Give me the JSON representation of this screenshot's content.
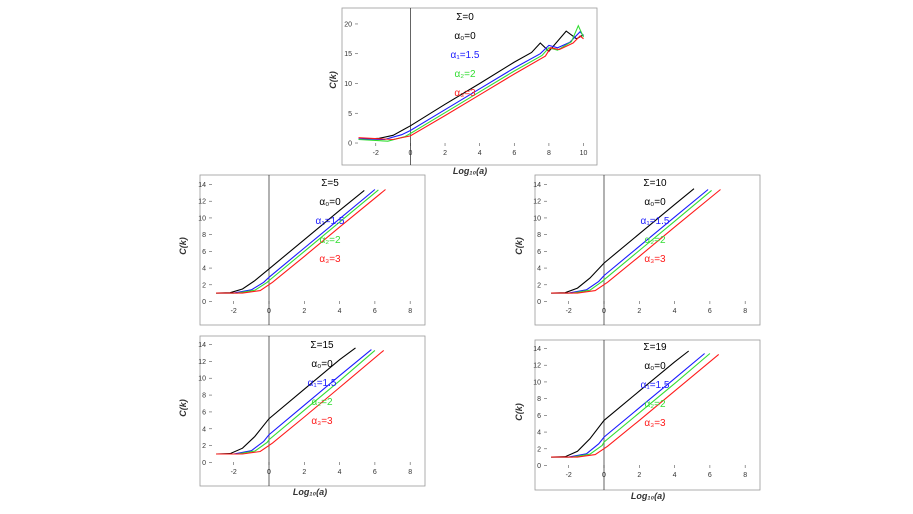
{
  "colors": {
    "alpha0": "#000000",
    "alpha1": "#1a1aff",
    "alpha2": "#33dd33",
    "alpha3": "#ff1a1a",
    "frame": "#999999",
    "vline": "#222222"
  },
  "labels": {
    "alpha0": "α₀=0",
    "alpha1": "α₁=1.5",
    "alpha2": "α₂=2",
    "alpha3": "α₃=3"
  },
  "chart_data": [
    {
      "type": "line",
      "title": "Ʃ=0",
      "xlabel": "Log₁₀(a)",
      "ylabel": "C(k)",
      "xlim": [
        -3.2,
        10.2
      ],
      "ylim": [
        -0.5,
        21
      ],
      "xticks": [
        -2,
        0,
        2,
        4,
        6,
        8,
        10
      ],
      "yticks": [
        0,
        5,
        10,
        15,
        20
      ],
      "series": [
        {
          "name": "α₀=0",
          "x": [
            -3.0,
            -1.8,
            -1.0,
            0,
            2,
            4,
            6,
            7.0,
            7.5,
            8.0,
            9.0,
            9.6,
            10.0
          ],
          "y": [
            0.6,
            0.8,
            1.3,
            2.9,
            6.5,
            10.0,
            13.6,
            15.2,
            16.8,
            15.4,
            18.8,
            17.5,
            18.2
          ]
        },
        {
          "name": "α₁=1.5",
          "x": [
            -3.0,
            -1.5,
            -0.5,
            0,
            2,
            4,
            6,
            7.5,
            8.0,
            8.5,
            9.2,
            9.8,
            10.0
          ],
          "y": [
            0.7,
            0.6,
            1.4,
            2.1,
            5.6,
            9.1,
            12.6,
            15.0,
            16.4,
            16.0,
            16.9,
            18.7,
            18.0
          ]
        },
        {
          "name": "α₂=2",
          "x": [
            -3.0,
            -1.3,
            -0.3,
            0,
            2,
            4,
            6,
            7.6,
            8.0,
            8.5,
            9.3,
            9.7,
            10.0
          ],
          "y": [
            0.6,
            0.3,
            1.1,
            1.6,
            5.1,
            8.6,
            12.1,
            14.7,
            16.0,
            15.6,
            17.0,
            19.7,
            17.8
          ]
        },
        {
          "name": "α₃=3",
          "x": [
            -3.0,
            -1.0,
            0,
            2,
            4,
            6,
            7.8,
            8.1,
            8.6,
            9.4,
            9.8,
            10.0
          ],
          "y": [
            0.9,
            0.6,
            1.2,
            4.6,
            8.1,
            11.6,
            14.6,
            16.0,
            15.7,
            16.8,
            18.0,
            17.5
          ]
        }
      ]
    },
    {
      "type": "line",
      "title": "Ʃ=5",
      "xlabel": "",
      "ylabel": "C(k)",
      "xlim": [
        -3.4,
        8.5
      ],
      "ylim": [
        -0.3,
        14.3
      ],
      "xticks": [
        -2,
        0,
        2,
        4,
        6,
        8
      ],
      "yticks": [
        0,
        2,
        4,
        6,
        8,
        10,
        12,
        14
      ],
      "series": [
        {
          "name": "α₀=0",
          "x": [
            -3.0,
            -2.2,
            -1.5,
            -0.8,
            0,
            2,
            4,
            5.4
          ],
          "y": [
            1.0,
            1.05,
            1.5,
            2.5,
            3.9,
            7.4,
            10.9,
            13.3
          ]
        },
        {
          "name": "α₁=1.5",
          "x": [
            -3.0,
            -2.0,
            -1.0,
            -0.3,
            0,
            2,
            4,
            6.0
          ],
          "y": [
            1.0,
            1.0,
            1.4,
            2.3,
            2.9,
            6.4,
            9.9,
            13.4
          ]
        },
        {
          "name": "α₂=2",
          "x": [
            -3.0,
            -1.8,
            -0.8,
            -0.1,
            0,
            2,
            4,
            6.2
          ],
          "y": [
            1.0,
            1.0,
            1.35,
            2.3,
            2.5,
            6.0,
            9.5,
            13.35
          ]
        },
        {
          "name": "α₃=3",
          "x": [
            -3.0,
            -1.5,
            -0.5,
            0.2,
            2,
            4,
            6.6
          ],
          "y": [
            1.0,
            1.0,
            1.3,
            2.3,
            5.4,
            8.9,
            13.4
          ]
        }
      ]
    },
    {
      "type": "line",
      "title": "Ʃ=10",
      "xlabel": "",
      "ylabel": "C(k)",
      "xlim": [
        -3.4,
        8.5
      ],
      "ylim": [
        -0.3,
        14.3
      ],
      "xticks": [
        -2,
        0,
        2,
        4,
        6,
        8
      ],
      "yticks": [
        0,
        2,
        4,
        6,
        8,
        10,
        12,
        14
      ],
      "series": [
        {
          "name": "α₀=0",
          "x": [
            -3.0,
            -2.2,
            -1.5,
            -0.8,
            0,
            2,
            4,
            5.1
          ],
          "y": [
            1.0,
            1.05,
            1.6,
            2.8,
            4.6,
            8.1,
            11.6,
            13.5
          ]
        },
        {
          "name": "α₁=1.5",
          "x": [
            -3.0,
            -2.0,
            -1.0,
            -0.3,
            0,
            2,
            4,
            5.9
          ],
          "y": [
            1.0,
            1.0,
            1.4,
            2.4,
            3.1,
            6.6,
            10.1,
            13.4
          ]
        },
        {
          "name": "α₂=2",
          "x": [
            -3.0,
            -1.8,
            -0.8,
            -0.1,
            0,
            2,
            4,
            6.1
          ],
          "y": [
            1.0,
            1.0,
            1.35,
            2.4,
            2.6,
            6.1,
            9.6,
            13.3
          ]
        },
        {
          "name": "α₃=3",
          "x": [
            -3.0,
            -1.5,
            -0.5,
            0.2,
            2,
            4,
            6.6
          ],
          "y": [
            1.0,
            1.0,
            1.3,
            2.3,
            5.4,
            8.9,
            13.4
          ]
        }
      ]
    },
    {
      "type": "line",
      "title": "Ʃ=15",
      "xlabel": "Log₁₀(a)",
      "ylabel": "C(k)",
      "xlim": [
        -3.4,
        8.5
      ],
      "ylim": [
        -0.3,
        14.3
      ],
      "xticks": [
        -2,
        0,
        2,
        4,
        6,
        8
      ],
      "yticks": [
        0,
        2,
        4,
        6,
        8,
        10,
        12,
        14
      ],
      "series": [
        {
          "name": "α₀=0",
          "x": [
            -3.0,
            -2.2,
            -1.5,
            -0.8,
            0,
            2,
            4,
            4.9
          ],
          "y": [
            1.0,
            1.05,
            1.7,
            3.1,
            5.2,
            8.7,
            12.2,
            13.6
          ]
        },
        {
          "name": "α₁=1.5",
          "x": [
            -3.0,
            -2.0,
            -1.0,
            -0.3,
            0,
            2,
            4,
            5.8
          ],
          "y": [
            1.0,
            1.0,
            1.4,
            2.5,
            3.3,
            6.8,
            10.3,
            13.4
          ]
        },
        {
          "name": "α₂=2",
          "x": [
            -3.0,
            -1.8,
            -0.8,
            -0.1,
            0,
            2,
            4,
            6.0
          ],
          "y": [
            1.0,
            1.0,
            1.35,
            2.4,
            2.7,
            6.2,
            9.7,
            13.3
          ]
        },
        {
          "name": "α₃=3",
          "x": [
            -3.0,
            -1.5,
            -0.5,
            0.2,
            2,
            4,
            6.5
          ],
          "y": [
            1.0,
            1.0,
            1.3,
            2.3,
            5.4,
            8.9,
            13.3
          ]
        }
      ]
    },
    {
      "type": "line",
      "title": "Ʃ=19",
      "xlabel": "Log₁₀(a)",
      "ylabel": "C(k)",
      "xlim": [
        -3.4,
        8.5
      ],
      "ylim": [
        -0.3,
        14.3
      ],
      "xticks": [
        -2,
        0,
        2,
        4,
        6,
        8
      ],
      "yticks": [
        0,
        2,
        4,
        6,
        8,
        10,
        12,
        14
      ],
      "series": [
        {
          "name": "α₀=0",
          "x": [
            -3.0,
            -2.2,
            -1.5,
            -0.8,
            0,
            2,
            4,
            4.8
          ],
          "y": [
            1.0,
            1.05,
            1.7,
            3.2,
            5.4,
            8.9,
            12.4,
            13.7
          ]
        },
        {
          "name": "α₁=1.5",
          "x": [
            -3.0,
            -2.0,
            -1.0,
            -0.3,
            0,
            2,
            4,
            5.7
          ],
          "y": [
            1.0,
            1.0,
            1.4,
            2.6,
            3.4,
            6.9,
            10.4,
            13.4
          ]
        },
        {
          "name": "α₂=2",
          "x": [
            -3.0,
            -1.8,
            -0.8,
            -0.1,
            0,
            2,
            4,
            6.0
          ],
          "y": [
            1.0,
            1.0,
            1.35,
            2.4,
            2.8,
            6.3,
            9.8,
            13.4
          ]
        },
        {
          "name": "α₃=3",
          "x": [
            -3.0,
            -1.5,
            -0.5,
            0.2,
            2,
            4,
            6.5
          ],
          "y": [
            1.0,
            1.0,
            1.3,
            2.3,
            5.4,
            8.9,
            13.3
          ]
        }
      ]
    }
  ]
}
